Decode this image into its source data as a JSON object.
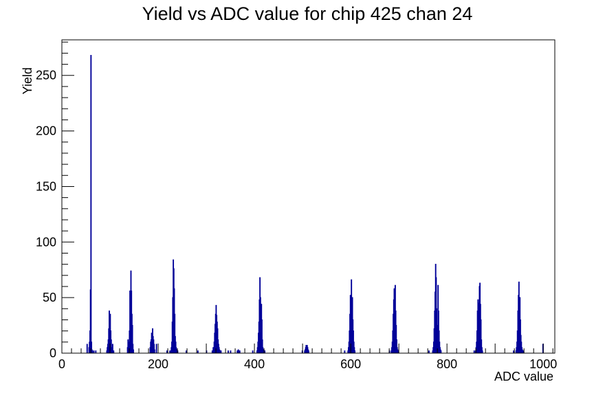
{
  "chart_data": {
    "type": "bar",
    "title": "Yield vs ADC value for chip 425 chan 24",
    "xlabel": "ADC value",
    "ylabel": "Yield",
    "xlim": [
      0,
      1024
    ],
    "ylim": [
      0,
      282
    ],
    "grid": false,
    "legend": "none",
    "x_ticks": [
      0,
      200,
      400,
      600,
      800,
      1000
    ],
    "y_ticks": [
      0,
      50,
      100,
      150,
      200,
      250
    ],
    "line_color": "#000099",
    "series": [
      {
        "x": [
          52,
          56,
          57,
          58,
          59,
          60,
          61,
          62,
          63,
          66,
          70,
          93,
          94,
          95,
          96,
          97,
          98,
          99,
          100,
          101,
          102,
          103,
          104,
          105,
          106,
          107,
          136,
          137,
          138,
          139,
          140,
          141,
          142,
          143,
          144,
          145,
          146,
          147,
          148,
          183,
          184,
          185,
          186,
          187,
          188,
          189,
          190,
          191,
          192,
          196,
          218,
          224,
          226,
          227,
          228,
          229,
          230,
          231,
          232,
          233,
          234,
          235,
          236,
          237,
          238,
          239,
          240,
          258,
          282,
          300,
          312,
          314,
          316,
          317,
          318,
          319,
          320,
          321,
          322,
          323,
          324,
          325,
          326,
          327,
          328,
          329,
          330,
          345,
          350,
          364,
          365,
          366,
          367,
          368,
          369,
          396,
          405,
          406,
          407,
          408,
          409,
          410,
          411,
          412,
          413,
          414,
          415,
          416,
          417,
          418,
          419,
          420,
          421,
          499,
          504,
          505,
          506,
          507,
          508,
          509,
          510,
          511,
          512,
          587,
          594,
          595,
          596,
          597,
          598,
          599,
          600,
          601,
          602,
          603,
          604,
          605,
          606,
          607,
          608,
          680,
          684,
          685,
          686,
          687,
          688,
          689,
          690,
          691,
          692,
          693,
          694,
          695,
          696,
          697,
          698,
          762,
          770,
          771,
          772,
          773,
          774,
          775,
          776,
          777,
          778,
          779,
          780,
          781,
          782,
          783,
          784,
          785,
          786,
          787,
          856,
          859,
          860,
          861,
          862,
          863,
          864,
          865,
          866,
          867,
          868,
          869,
          870,
          871,
          872,
          873,
          938,
          943,
          944,
          945,
          946,
          947,
          948,
          949,
          950,
          951,
          952,
          953,
          954,
          955,
          956,
          957,
          958,
          999
        ],
        "values": [
          8,
          5,
          10,
          20,
          57,
          268,
          10,
          3,
          2,
          2,
          2,
          2,
          5,
          8,
          12,
          22,
          38,
          25,
          35,
          20,
          12,
          5,
          3,
          8,
          2,
          2,
          5,
          12,
          8,
          10,
          20,
          56,
          48,
          74,
          56,
          35,
          25,
          8,
          3,
          5,
          10,
          12,
          18,
          16,
          22,
          15,
          12,
          8,
          3,
          8,
          2,
          2,
          2,
          5,
          10,
          28,
          50,
          84,
          76,
          58,
          35,
          15,
          10,
          5,
          3,
          2,
          2,
          2,
          2,
          2,
          2,
          5,
          10,
          18,
          26,
          35,
          43,
          34,
          28,
          22,
          12,
          8,
          5,
          3,
          2,
          2,
          2,
          2,
          2,
          2,
          2,
          3,
          2,
          2,
          2,
          2,
          2,
          5,
          10,
          18,
          28,
          48,
          68,
          50,
          30,
          44,
          30,
          12,
          5,
          3,
          2,
          2,
          2,
          2,
          2,
          3,
          5,
          7,
          5,
          7,
          5,
          3,
          2,
          2,
          2,
          5,
          10,
          20,
          35,
          52,
          45,
          66,
          38,
          50,
          30,
          20,
          10,
          5,
          2,
          2,
          2,
          5,
          10,
          20,
          35,
          48,
          58,
          55,
          61,
          38,
          25,
          12,
          5,
          3,
          2,
          2,
          2,
          5,
          10,
          22,
          38,
          55,
          80,
          68,
          40,
          18,
          25,
          61,
          38,
          20,
          10,
          5,
          3,
          2,
          2,
          2,
          5,
          10,
          20,
          38,
          48,
          40,
          45,
          60,
          63,
          44,
          30,
          12,
          5,
          2,
          2,
          2,
          5,
          10,
          20,
          38,
          52,
          64,
          45,
          50,
          30,
          16,
          10,
          5,
          3,
          2,
          2,
          8
        ]
      }
    ]
  }
}
